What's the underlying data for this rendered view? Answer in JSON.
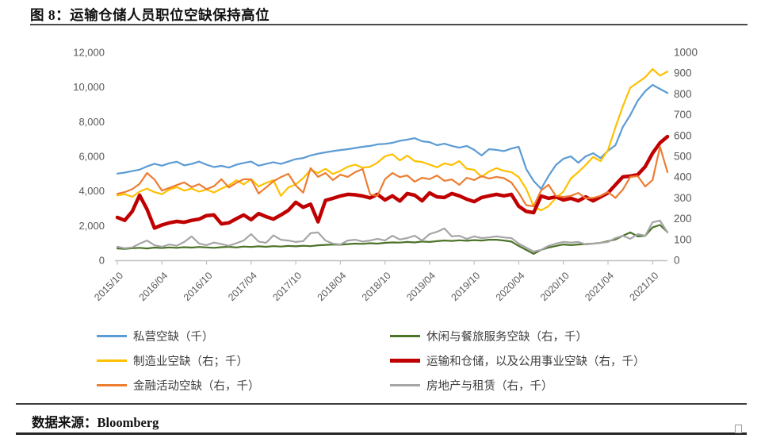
{
  "title": "图 8：运输仓储人员职位空缺保持高位",
  "source": {
    "label": "数据来源：Bloomberg"
  },
  "colors": {
    "axis_text": "#595959",
    "axis_line": "#bfbfbf",
    "rule": "#3f3f3f"
  },
  "chart_data": {
    "type": "line",
    "x_start": "2015/10",
    "x_interval": "monthly",
    "x_tick_labels": [
      "2015/10",
      "2016/04",
      "2016/10",
      "2017/04",
      "2017/10",
      "2018/04",
      "2018/10",
      "2019/04",
      "2019/10",
      "2020/04",
      "2020/10",
      "2021/04",
      "2021/10"
    ],
    "left_axis": {
      "min": 0,
      "max": 12000,
      "ticks": [
        "0",
        "2,000",
        "4,000",
        "6,000",
        "8,000",
        "10,000",
        "12,000"
      ]
    },
    "right_axis": {
      "min": 0,
      "max": 1000,
      "ticks": [
        "0",
        "100",
        "200",
        "300",
        "400",
        "500",
        "600",
        "700",
        "800",
        "900",
        "1000"
      ]
    },
    "grid": false,
    "legend_position": "bottom-two-columns",
    "draw_order": [
      0,
      3,
      1,
      4,
      2,
      5
    ],
    "series": [
      {
        "id": "private",
        "name": "私营空缺（千）",
        "axis": "left",
        "color": "#5B9BD5",
        "width": 2.2,
        "values": [
          5000,
          5060,
          5150,
          5230,
          5420,
          5570,
          5460,
          5600,
          5690,
          5480,
          5560,
          5700,
          5520,
          5380,
          5450,
          5350,
          5520,
          5620,
          5700,
          5460,
          5560,
          5660,
          5560,
          5700,
          5840,
          5900,
          6050,
          6150,
          6230,
          6300,
          6360,
          6410,
          6480,
          6550,
          6600,
          6690,
          6720,
          6780,
          6900,
          6960,
          7050,
          6870,
          6820,
          6640,
          6730,
          6600,
          6500,
          6600,
          6370,
          6050,
          6410,
          6370,
          6300,
          6450,
          6550,
          5270,
          4580,
          4120,
          4860,
          5500,
          5860,
          6000,
          5630,
          6000,
          6180,
          5900,
          6320,
          6640,
          7690,
          8380,
          9210,
          9760,
          10120,
          9890,
          9660
        ]
      },
      {
        "id": "manufacturing",
        "name": "制造业空缺（右；千）",
        "axis": "right",
        "color": "#FFC000",
        "width": 2.2,
        "values": [
          312,
          318,
          305,
          330,
          345,
          328,
          318,
          340,
          352,
          335,
          345,
          330,
          340,
          326,
          345,
          360,
          385,
          365,
          390,
          355,
          372,
          385,
          310,
          350,
          365,
          395,
          435,
          420,
          440,
          415,
          430,
          450,
          460,
          445,
          450,
          470,
          500,
          510,
          480,
          504,
          477,
          473,
          460,
          447,
          466,
          458,
          477,
          440,
          435,
          401,
          427,
          443,
          430,
          424,
          400,
          344,
          260,
          240,
          260,
          300,
          330,
          393,
          424,
          458,
          497,
          477,
          530,
          640,
          740,
          830,
          855,
          880,
          920,
          888,
          908
        ]
      },
      {
        "id": "financial",
        "name": "金融活动空缺（右，千）",
        "axis": "right",
        "color": "#ED7D31",
        "width": 2.2,
        "values": [
          320,
          328,
          342,
          368,
          420,
          388,
          335,
          348,
          362,
          375,
          352,
          366,
          342,
          356,
          390,
          350,
          372,
          390,
          389,
          321,
          350,
          380,
          400,
          416,
          360,
          325,
          443,
          401,
          420,
          386,
          412,
          401,
          424,
          439,
          317,
          310,
          390,
          420,
          400,
          408,
          378,
          397,
          390,
          408,
          382,
          389,
          363,
          397,
          386,
          405,
          393,
          401,
          395,
          374,
          324,
          265,
          260,
          336,
          363,
          309,
          305,
          310,
          324,
          298,
          300,
          310,
          328,
          300,
          340,
          401,
          405,
          355,
          386,
          546,
          424
        ]
      },
      {
        "id": "leisure",
        "name": "休闲与餐旅服务空缺（右，千）",
        "axis": "right",
        "color": "#4C7328",
        "width": 2.2,
        "values": [
          57,
          55,
          58,
          60,
          57,
          61,
          59,
          62,
          60,
          63,
          61,
          64,
          62,
          60,
          63,
          65,
          62,
          66,
          64,
          67,
          65,
          68,
          66,
          69,
          67,
          70,
          68,
          72,
          74,
          76,
          75,
          78,
          80,
          79,
          82,
          80,
          84,
          86,
          85,
          88,
          86,
          90,
          88,
          92,
          95,
          93,
          96,
          94,
          97,
          95,
          99,
          99,
          95,
          90,
          69,
          50,
          31,
          50,
          61,
          69,
          76,
          73,
          76,
          78,
          80,
          84,
          92,
          100,
          118,
          134,
          115,
          118,
          158,
          170,
          136
        ]
      },
      {
        "id": "transport",
        "name": "运输和仓储，以及公用事业空缺（右，千）",
        "axis": "right",
        "color": "#C00000",
        "width": 4.5,
        "values": [
          206,
          192,
          235,
          313,
          245,
          155,
          170,
          180,
          187,
          183,
          192,
          198,
          215,
          218,
          175,
          180,
          200,
          218,
          195,
          225,
          210,
          198,
          218,
          240,
          279,
          255,
          270,
          185,
          288,
          298,
          309,
          317,
          315,
          309,
          300,
          317,
          290,
          310,
          285,
          321,
          313,
          286,
          324,
          305,
          302,
          321,
          310,
          294,
          282,
          302,
          310,
          317,
          310,
          317,
          260,
          235,
          229,
          309,
          298,
          305,
          290,
          298,
          286,
          305,
          286,
          305,
          324,
          363,
          401,
          405,
          412,
          450,
          515,
          565,
          595
        ]
      },
      {
        "id": "real-estate",
        "name": "房地产与租赁（右，千）",
        "axis": "right",
        "color": "#A6A6A6",
        "width": 2.2,
        "values": [
          65,
          58,
          62,
          80,
          95,
          72,
          65,
          76,
          70,
          88,
          115,
          80,
          73,
          85,
          78,
          70,
          82,
          95,
          126,
          90,
          84,
          120,
          99,
          95,
          88,
          92,
          130,
          134,
          95,
          80,
          76,
          95,
          99,
          90,
          95,
          103,
          95,
          118,
          100,
          107,
          118,
          95,
          126,
          137,
          153,
          115,
          118,
          103,
          115,
          107,
          110,
          115,
          110,
          107,
          80,
          61,
          42,
          50,
          69,
          80,
          88,
          85,
          88,
          76,
          80,
          84,
          88,
          107,
          118,
          103,
          126,
          118,
          183,
          191,
          134
        ]
      }
    ]
  }
}
